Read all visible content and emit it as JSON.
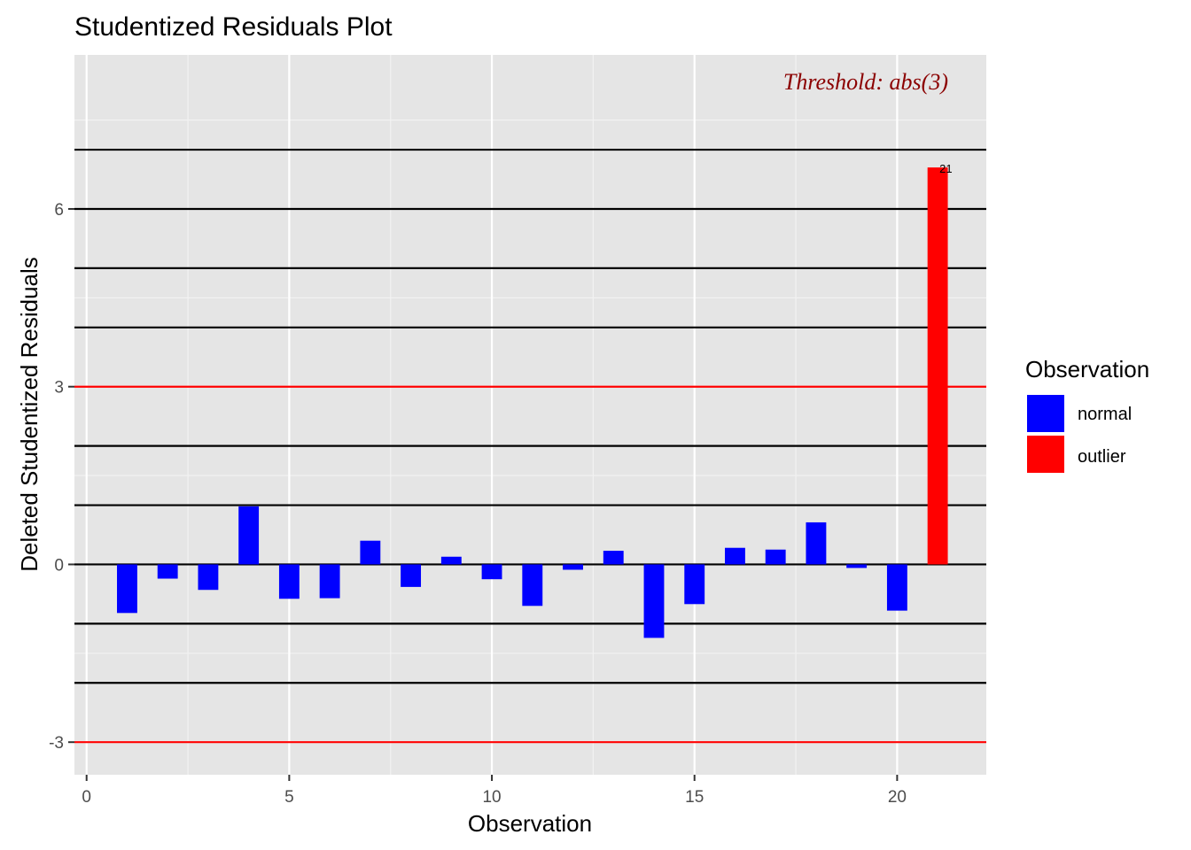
{
  "chart_data": {
    "type": "bar",
    "title": "Studentized Residuals Plot",
    "xlabel": "Observation",
    "ylabel": "Deleted Studentized Residuals",
    "xlim": [
      -0.3,
      22.2
    ],
    "ylim": [
      -3.55,
      8.6
    ],
    "x_ticks": [
      0,
      5,
      10,
      15,
      20
    ],
    "y_ticks": [
      -3,
      0,
      3,
      6
    ],
    "grid": true,
    "threshold": 3,
    "threshold_color": "#ff0000",
    "reference_lines": [
      -2,
      -1,
      0,
      1,
      2,
      4,
      5,
      6,
      7
    ],
    "annotation": "Threshold: abs(3)",
    "annotation_color": "#8b0000",
    "legend": {
      "title": "Observation",
      "position": "right",
      "entries": [
        {
          "label": "normal",
          "color": "#0000ff"
        },
        {
          "label": "outlier",
          "color": "#ff0000"
        }
      ]
    },
    "x": [
      1,
      2,
      3,
      4,
      5,
      6,
      7,
      8,
      9,
      10,
      11,
      12,
      13,
      14,
      15,
      16,
      17,
      18,
      19,
      20,
      21
    ],
    "values": [
      -0.82,
      -0.24,
      -0.43,
      0.98,
      -0.58,
      -0.57,
      0.4,
      -0.38,
      0.13,
      -0.25,
      -0.7,
      -0.09,
      0.23,
      -1.24,
      -0.67,
      0.28,
      0.25,
      0.71,
      -0.06,
      -0.78,
      6.7
    ],
    "groups": [
      "normal",
      "normal",
      "normal",
      "normal",
      "normal",
      "normal",
      "normal",
      "normal",
      "normal",
      "normal",
      "normal",
      "normal",
      "normal",
      "normal",
      "normal",
      "normal",
      "normal",
      "normal",
      "normal",
      "normal",
      "outlier"
    ],
    "labeled_points": [
      {
        "x": 21,
        "label": "21"
      }
    ]
  }
}
